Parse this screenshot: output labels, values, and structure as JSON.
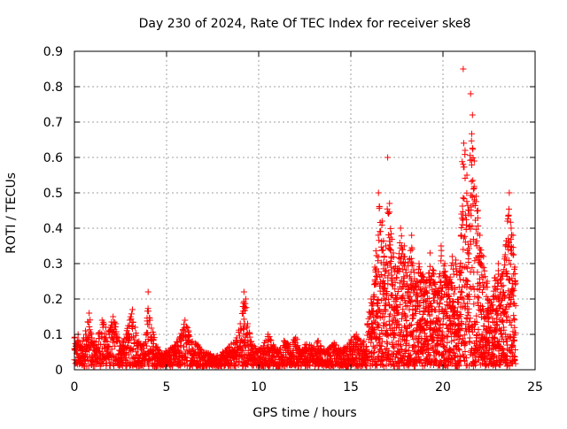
{
  "chart_data": {
    "type": "scatter",
    "title": "Day 230 of 2024, Rate Of TEC Index for receiver ske8",
    "xlabel": "GPS time / hours",
    "ylabel": "ROTI / TECUs",
    "xlim": [
      0,
      25
    ],
    "ylim": [
      0,
      0.9
    ],
    "xticks": [
      0,
      5,
      10,
      15,
      20,
      25
    ],
    "yticks": [
      0,
      0.1,
      0.2,
      0.3,
      0.4,
      0.5,
      0.6,
      0.7,
      0.8,
      0.9
    ],
    "xtick_labels": [
      "0",
      "5",
      "10",
      "15",
      "20",
      "25"
    ],
    "ytick_labels": [
      "0",
      "0.1",
      "0.2",
      "0.3",
      "0.4",
      "0.5",
      "0.6",
      "0.7",
      "0.8",
      "0.9"
    ],
    "grid": true,
    "marker": "+",
    "color": "#ff0000",
    "series": [
      {
        "name": "ROTI",
        "x": [
          0.0,
          0.1,
          0.2,
          0.3,
          0.45,
          0.6,
          0.8,
          0.95,
          1.1,
          1.3,
          1.5,
          1.7,
          1.9,
          2.1,
          2.25,
          2.4,
          2.6,
          2.8,
          3.0,
          3.15,
          3.3,
          3.5,
          3.7,
          3.9,
          4.0,
          4.1,
          4.3,
          4.5,
          4.8,
          5.1,
          5.4,
          5.7,
          6.0,
          6.2,
          6.4,
          6.7,
          7.0,
          7.3,
          7.6,
          8.0,
          8.4,
          8.8,
          9.0,
          9.2,
          9.3,
          9.4,
          9.6,
          9.9,
          10.2,
          10.5,
          10.8,
          11.1,
          11.4,
          11.7,
          12.0,
          12.3,
          12.6,
          12.9,
          13.2,
          13.5,
          13.8,
          14.1,
          14.4,
          14.7,
          15.0,
          15.3,
          15.6,
          15.9,
          16.1,
          16.3,
          16.5,
          16.7,
          16.9,
          17.0,
          17.1,
          17.3,
          17.5,
          17.7,
          17.9,
          18.1,
          18.3,
          18.5,
          18.7,
          18.9,
          19.1,
          19.3,
          19.5,
          19.7,
          19.9,
          20.1,
          20.3,
          20.5,
          20.7,
          20.9,
          21.0,
          21.1,
          21.2,
          21.3,
          21.4,
          21.5,
          21.6,
          21.7,
          21.8,
          21.9,
          22.0,
          22.2,
          22.4,
          22.6,
          22.8,
          23.0,
          23.2,
          23.4,
          23.5,
          23.6,
          23.7,
          23.8,
          23.9
        ],
        "y": [
          0.09,
          0.07,
          0.1,
          0.06,
          0.08,
          0.11,
          0.16,
          0.09,
          0.07,
          0.1,
          0.14,
          0.12,
          0.11,
          0.15,
          0.13,
          0.09,
          0.07,
          0.1,
          0.14,
          0.17,
          0.12,
          0.08,
          0.06,
          0.1,
          0.22,
          0.14,
          0.1,
          0.06,
          0.04,
          0.05,
          0.06,
          0.09,
          0.14,
          0.11,
          0.08,
          0.07,
          0.05,
          0.04,
          0.03,
          0.04,
          0.06,
          0.09,
          0.13,
          0.22,
          0.2,
          0.13,
          0.08,
          0.05,
          0.06,
          0.1,
          0.07,
          0.05,
          0.08,
          0.06,
          0.09,
          0.05,
          0.07,
          0.06,
          0.08,
          0.05,
          0.06,
          0.07,
          0.05,
          0.06,
          0.08,
          0.1,
          0.07,
          0.13,
          0.2,
          0.29,
          0.5,
          0.42,
          0.35,
          0.6,
          0.47,
          0.33,
          0.28,
          0.4,
          0.35,
          0.3,
          0.38,
          0.24,
          0.3,
          0.27,
          0.25,
          0.33,
          0.28,
          0.22,
          0.35,
          0.3,
          0.24,
          0.32,
          0.31,
          0.28,
          0.44,
          0.85,
          0.62,
          0.55,
          0.44,
          0.78,
          0.72,
          0.59,
          0.49,
          0.45,
          0.38,
          0.32,
          0.25,
          0.18,
          0.26,
          0.3,
          0.27,
          0.35,
          0.42,
          0.5,
          0.4,
          0.38,
          0.29
        ]
      }
    ]
  }
}
